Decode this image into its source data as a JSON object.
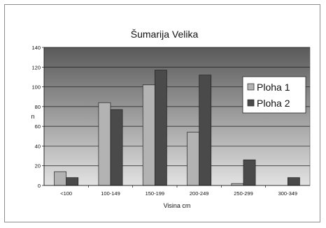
{
  "chart_data": {
    "type": "bar",
    "title": "Šumarija Velika",
    "xlabel": "Visina cm",
    "ylabel": "n",
    "categories": [
      "<100",
      "100-149",
      "150-199",
      "200-249",
      "250-299",
      "300-349"
    ],
    "series": [
      {
        "name": "Ploha 1",
        "values": [
          14,
          84,
          102,
          54,
          2,
          0
        ],
        "color": "#b3b3b3"
      },
      {
        "name": "Ploha 2",
        "values": [
          8,
          77,
          117,
          112,
          26,
          8
        ],
        "color": "#4a4a4a"
      }
    ],
    "ylim": [
      0,
      140
    ],
    "yticks": [
      0,
      20,
      40,
      60,
      80,
      100,
      120,
      140
    ],
    "grid": true,
    "legend_position": "right",
    "colors": {
      "plot_top": "#5a5a5a",
      "plot_bottom": "#e2e2e2",
      "bar_outline": "#222222"
    }
  }
}
